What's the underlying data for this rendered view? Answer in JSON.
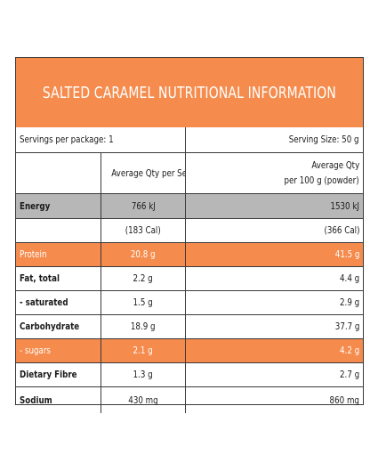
{
  "title": "SALTED CARAMEL NUTRITIONAL INFORMATION",
  "servings_per_package": "Servings per package: 1",
  "serving_size": "Serving Size: 50 g",
  "columns": {
    "per_serving": "Average Qty per Serving",
    "per_100g_line1": "Average Qty",
    "per_100g_line2": "per 100 g (powder)"
  },
  "rows": [
    {
      "label": "Energy",
      "per_serving": "766 kJ",
      "per_100g": "1530 kJ"
    },
    {
      "label": "",
      "per_serving": "(183 Cal)",
      "per_100g": "(366 Cal)"
    },
    {
      "label": "Protein",
      "per_serving": "20.8 g",
      "per_100g": "41.5 g"
    },
    {
      "label": "Fat, total",
      "per_serving": "2.2 g",
      "per_100g": "4.4 g"
    },
    {
      "label": "- saturated",
      "per_serving": "1.5 g",
      "per_100g": "2.9 g"
    },
    {
      "label": "Carbohydrate",
      "per_serving": "18.9 g",
      "per_100g": "37.7 g"
    },
    {
      "label": "- sugars",
      "per_serving": "2.1 g",
      "per_100g": "4.2 g"
    },
    {
      "label": "Dietary Fibre",
      "per_serving": "1.3 g",
      "per_100g": "2.7 g"
    },
    {
      "label": "Sodium",
      "per_serving": "430 mg",
      "per_100g": "860 mg"
    }
  ],
  "colors": {
    "accent": "#f58b4c",
    "energy_row": "#b7b7b7",
    "border": "#3a3a3a"
  }
}
